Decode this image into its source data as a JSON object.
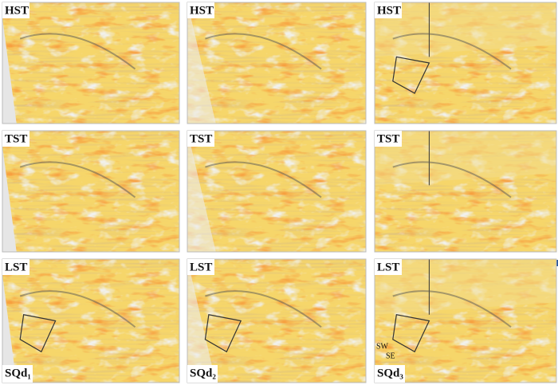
{
  "panels": [
    {
      "label": "HST"
    },
    {
      "label": "HST"
    },
    {
      "label": "HST"
    },
    {
      "label": "TST"
    },
    {
      "label": "TST"
    },
    {
      "label": "TST"
    },
    {
      "label": "LST",
      "caption": "SQd₁"
    },
    {
      "label": "LST",
      "caption": "SQd₂"
    },
    {
      "label": "LST",
      "caption": "SQd₃",
      "annotations": [
        "SW",
        "SE"
      ]
    }
  ]
}
